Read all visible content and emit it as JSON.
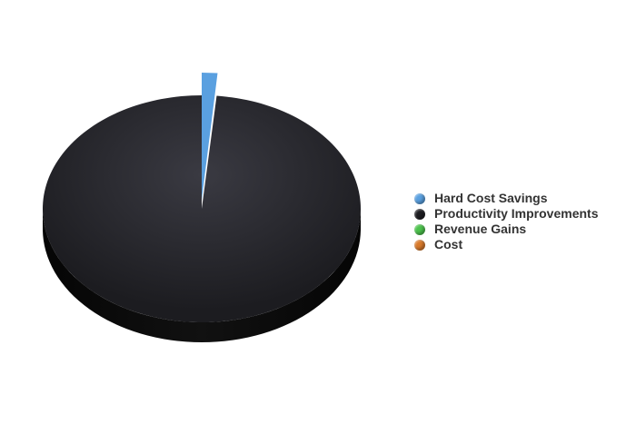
{
  "chart_data": {
    "type": "pie",
    "title": "",
    "style": "3d",
    "legend_position": "right",
    "categories": [
      "Hard Cost Savings",
      "Productivity Improvements",
      "Revenue Gains",
      "Cost"
    ],
    "values": [
      1.5,
      98.5,
      0,
      0
    ],
    "colors": [
      "#5aa0e0",
      "#1e1e22",
      "#4cc24c",
      "#d97a2b"
    ],
    "exploded_slice": "Hard Cost Savings"
  }
}
